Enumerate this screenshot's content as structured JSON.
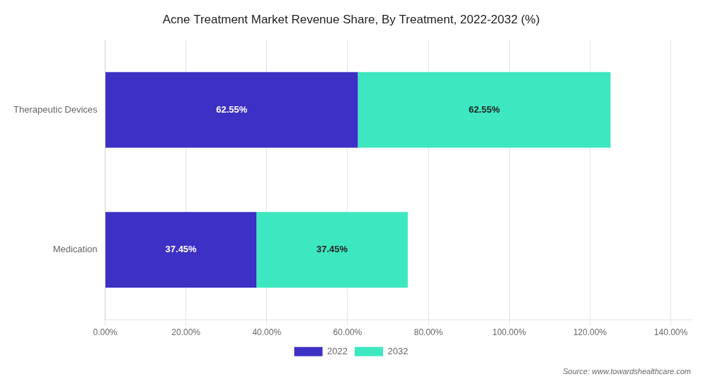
{
  "chart_data": {
    "type": "bar",
    "orientation": "horizontal",
    "stacked": true,
    "title": "Acne Treatment Market Revenue Share, By Treatment, 2022-2032 (%)",
    "annotation": "Source: www.towardshealthcare.com",
    "categories": [
      "Therapeutic Devices",
      "Medication"
    ],
    "series": [
      {
        "name": "2022",
        "color": "#3d30c4",
        "values": [
          62.55,
          37.45
        ],
        "value_labels": [
          "62.55%",
          "37.45%"
        ]
      },
      {
        "name": "2032",
        "color": "#3de8c0",
        "values": [
          62.55,
          37.45
        ],
        "value_labels": [
          "62.55%",
          "37.45%"
        ]
      }
    ],
    "xlim": [
      0,
      145
    ],
    "xticks": [
      {
        "value": 0,
        "label": "0.00%"
      },
      {
        "value": 20,
        "label": "20.00%"
      },
      {
        "value": 40,
        "label": "40.00%"
      },
      {
        "value": 60,
        "label": "60.00%"
      },
      {
        "value": 80,
        "label": "80.00%"
      },
      {
        "value": 100,
        "label": "100.00%"
      },
      {
        "value": 120,
        "label": "120.00%"
      },
      {
        "value": 140,
        "label": "140.00%"
      }
    ],
    "grid": "x",
    "legend": "bottom",
    "data_labels": true
  }
}
